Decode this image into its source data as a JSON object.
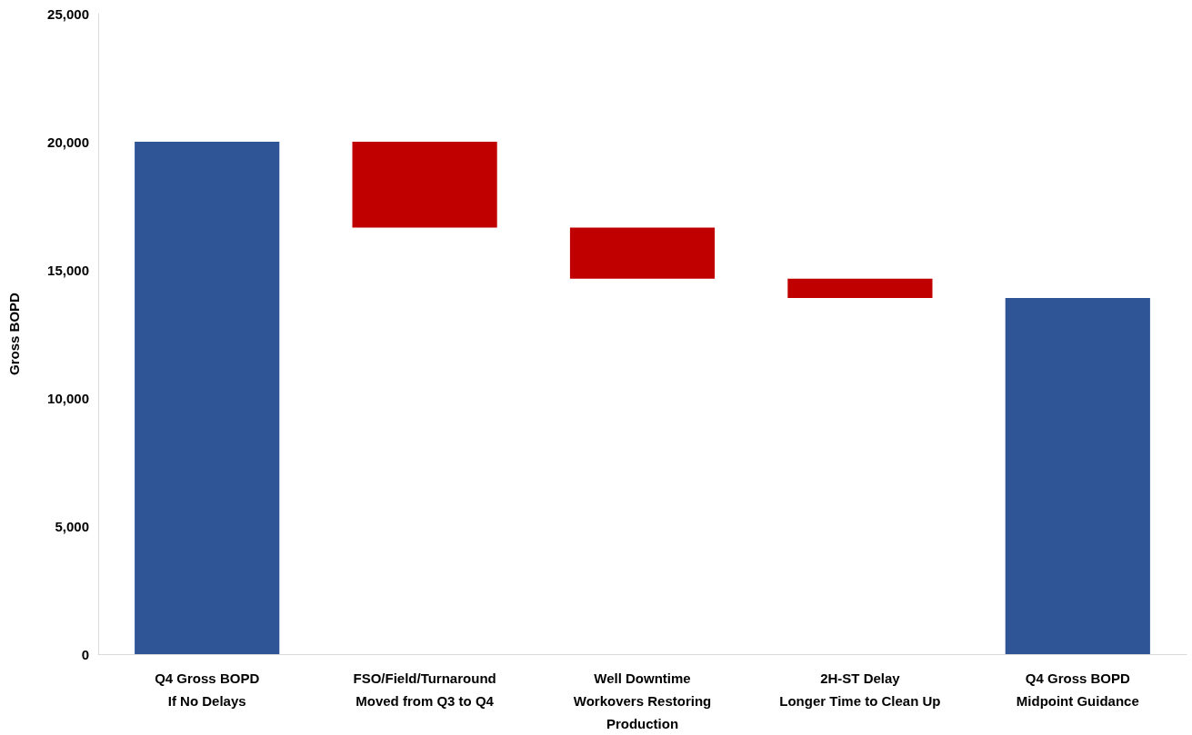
{
  "chart_data": {
    "type": "bar",
    "ylabel": "Gross BOPD",
    "categories": [
      "Q4 Gross BOPD\nIf No Delays",
      "FSO/Field/Turnaround\nMoved from Q3 to Q4",
      "Well Downtime\nWorkovers Restoring\nProduction",
      "2H-ST Delay\nLonger Time to Clean Up",
      "Q4 Gross BOPD\nMidpoint Guidance"
    ],
    "values": [
      20000,
      -3350,
      -2000,
      -750,
      13900
    ],
    "base": [
      0,
      20000,
      16650,
      14650,
      0
    ],
    "colors": [
      "#2f5597",
      "#c00000",
      "#c00000",
      "#c00000",
      "#2f5597"
    ],
    "ylim": [
      0,
      25000
    ],
    "yticks": [
      {
        "value": 0,
        "label": "0"
      },
      {
        "value": 5000,
        "label": "5,000"
      },
      {
        "value": 10000,
        "label": "10,000"
      },
      {
        "value": 15000,
        "label": "15,000"
      },
      {
        "value": 20000,
        "label": "20,000"
      },
      {
        "value": 25000,
        "label": "25,000"
      }
    ],
    "grid": false
  }
}
